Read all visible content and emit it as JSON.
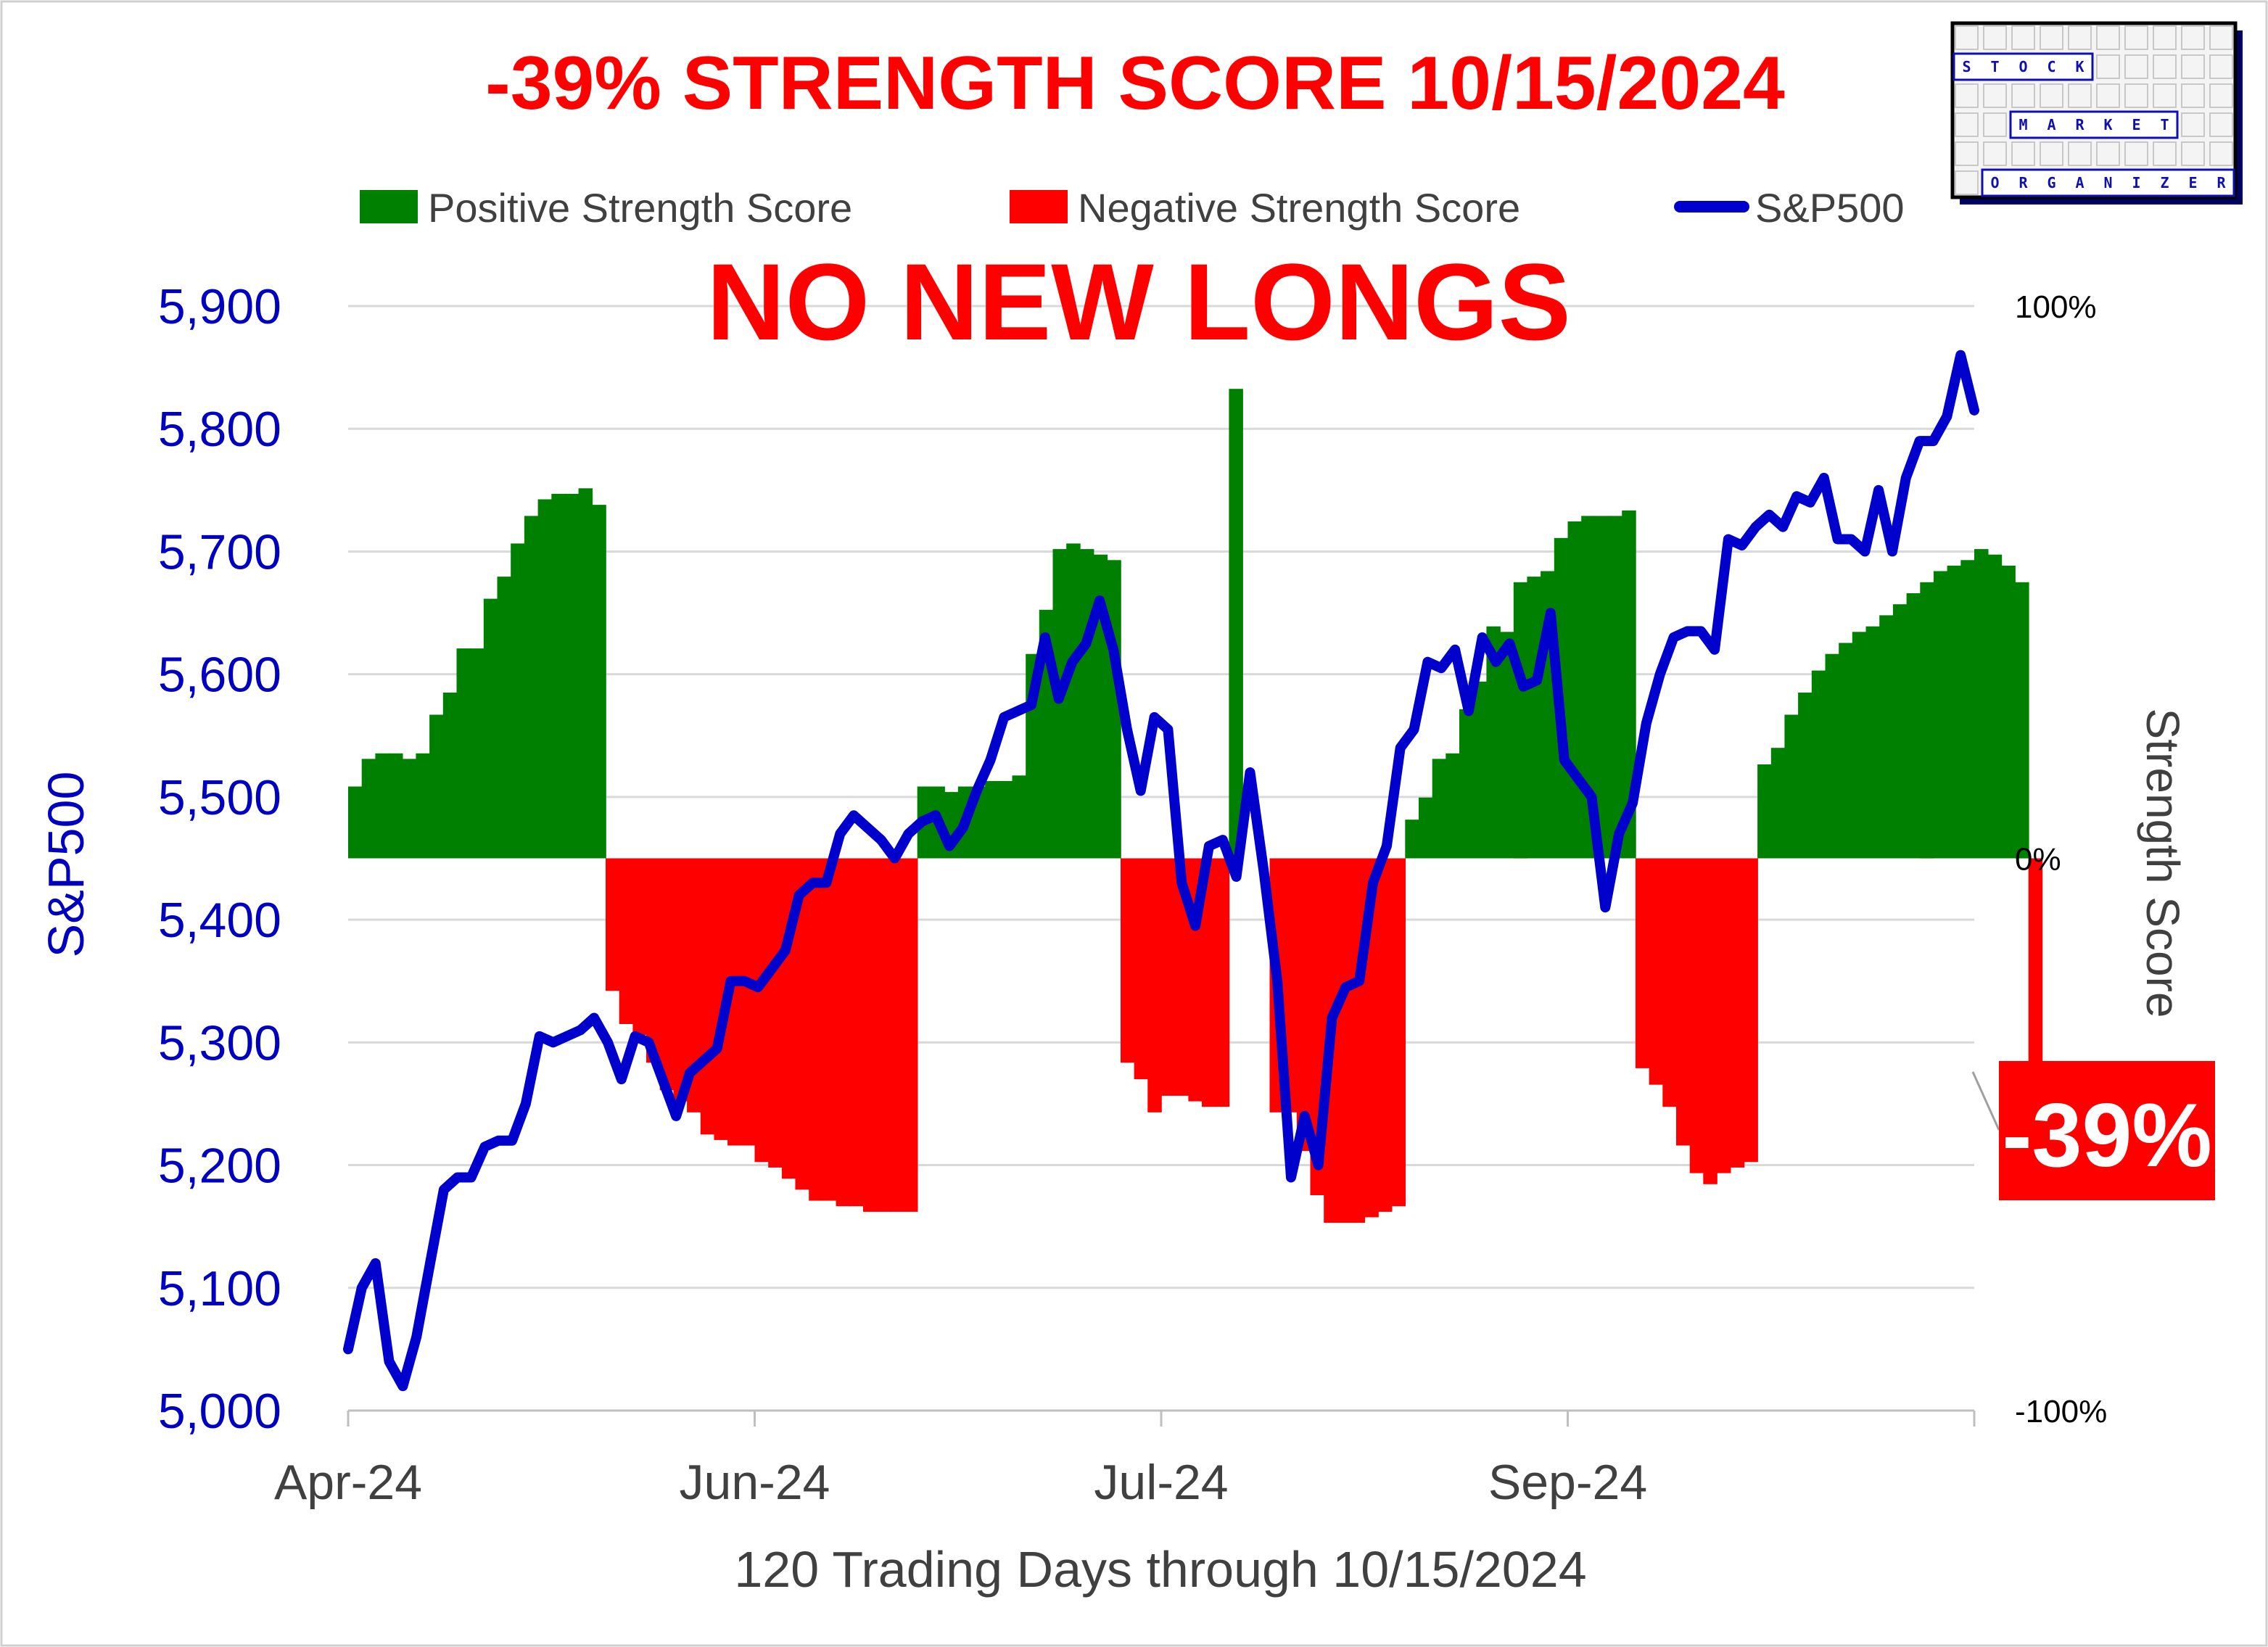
{
  "chart_data": {
    "type": "bar+line",
    "title": "-39% STRENGTH SCORE 10/15/2024",
    "annotation": "NO NEW LONGS",
    "current_label": "-39%",
    "xlabel": "120 Trading Days through 10/15/2024",
    "ylabel_left": "S&P500",
    "ylabel_right": "Strength Score",
    "ylim_left": [
      5000,
      5900
    ],
    "ylim_right": [
      -100,
      100
    ],
    "left_ticks": [
      "5,000",
      "5,100",
      "5,200",
      "5,300",
      "5,400",
      "5,500",
      "5,600",
      "5,700",
      "5,800",
      "5,900"
    ],
    "right_ticks": [
      "-100%",
      "0%",
      "100%"
    ],
    "x_ticks": [
      {
        "label": "Apr-24",
        "day": 0
      },
      {
        "label": "Jun-24",
        "day": 30
      },
      {
        "label": "Jul-24",
        "day": 60
      },
      {
        "label": "Sep-24",
        "day": 90
      },
      {
        "label": "",
        "day": 120
      }
    ],
    "legend": [
      {
        "label": "Positive Strength Score",
        "color": "#008000",
        "kind": "box"
      },
      {
        "label": "Negative Strength Score",
        "color": "#ff0000",
        "kind": "box"
      },
      {
        "label": "S&P500",
        "color": "#0000cc",
        "kind": "line"
      }
    ],
    "grid": true,
    "legend_position": "top",
    "colors": {
      "positive": "#008000",
      "negative": "#ff0000",
      "line": "#0000cc",
      "callout_bg": "#ff0000"
    },
    "series": [
      {
        "name": "Strength Score",
        "unit": "%",
        "values": [
          13,
          18,
          19,
          19,
          18,
          19,
          26,
          30,
          38,
          38,
          47,
          51,
          57,
          62,
          65,
          66,
          66,
          67,
          64,
          -24,
          -30,
          -32,
          -37,
          -42,
          -44,
          -46,
          -50,
          -51,
          -52,
          -52,
          -55,
          -56,
          -58,
          -60,
          -62,
          -62,
          -63,
          -63,
          -64,
          -64,
          -64,
          -64,
          13,
          13,
          12,
          13,
          13,
          14,
          14,
          15,
          37,
          45,
          56,
          57,
          56,
          55,
          54,
          -37,
          -40,
          -46,
          -43,
          -43,
          -44,
          -45,
          -45,
          85,
          0,
          0,
          -46,
          -46,
          -53,
          -61,
          -66,
          -66,
          -66,
          -65,
          -64,
          -63,
          7,
          11,
          18,
          19,
          27,
          32,
          42,
          41,
          50,
          51,
          52,
          58,
          61,
          62,
          62,
          62,
          63,
          -38,
          -41,
          -45,
          -52,
          -57,
          -59,
          -57,
          -56,
          -55,
          1,
          1,
          1,
          1,
          1,
          1,
          1,
          1,
          1,
          1,
          1,
          1,
          1,
          1,
          1,
          1,
          1,
          1,
          1,
          1,
          -38
        ],
        "values_overlay": [
          13,
          18,
          19,
          19,
          18,
          19,
          26,
          30,
          38,
          38,
          47,
          51,
          57,
          62,
          65,
          66,
          66,
          67,
          64,
          -24,
          -30,
          -32,
          -37,
          -42,
          -44,
          -46,
          -50,
          -51,
          -52,
          -52,
          -55,
          -56,
          -58,
          -60,
          -62,
          -62,
          -63,
          -63,
          -64,
          -64,
          -64,
          -64,
          13,
          13,
          12,
          13,
          13,
          14,
          14,
          15,
          37,
          45,
          56,
          57,
          56,
          55,
          54,
          -37,
          -40,
          -46,
          -43,
          -43,
          -44,
          -45,
          -45,
          85,
          0,
          0,
          -46,
          -46,
          -53,
          -61,
          -66,
          -66,
          -66,
          -65,
          -64,
          -63,
          7,
          11,
          18,
          19,
          27,
          32,
          42,
          41,
          50,
          51,
          52,
          58,
          61,
          62,
          62,
          62,
          63,
          -38,
          -41,
          -45,
          -52,
          -57,
          -59,
          -57,
          -56,
          -55,
          17,
          20,
          26,
          30,
          34,
          37,
          39,
          41,
          42,
          44,
          46,
          48,
          50,
          52,
          53,
          54,
          56,
          55,
          53,
          50,
          -39
        ]
      },
      {
        "name": "S&P500",
        "values": [
          5050,
          5100,
          5120,
          5040,
          5020,
          5060,
          5120,
          5180,
          5190,
          5190,
          5215,
          5220,
          5220,
          5250,
          5305,
          5300,
          5305,
          5310,
          5320,
          5300,
          5270,
          5305,
          5300,
          5270,
          5240,
          5275,
          5285,
          5295,
          5350,
          5350,
          5345,
          5360,
          5375,
          5420,
          5430,
          5430,
          5470,
          5485,
          5475,
          5465,
          5450,
          5470,
          5480,
          5485,
          5460,
          5475,
          5505,
          5530,
          5565,
          5570,
          5575,
          5630,
          5580,
          5610,
          5625,
          5660,
          5620,
          5555,
          5505,
          5565,
          5555,
          5430,
          5395,
          5460,
          5465,
          5435,
          5520,
          5440,
          5350,
          5190,
          5240,
          5200,
          5320,
          5345,
          5350,
          5430,
          5460,
          5540,
          5555,
          5610,
          5605,
          5620,
          5570,
          5630,
          5610,
          5625,
          5590,
          5595,
          5650,
          5530,
          5515,
          5500,
          5410,
          5470,
          5495,
          5560,
          5600,
          5630,
          5635,
          5635,
          5620,
          5710,
          5705,
          5720,
          5730,
          5720,
          5745,
          5740,
          5760,
          5710,
          5710,
          5700,
          5750,
          5700,
          5760,
          5790,
          5790,
          5810,
          5860,
          5815
        ]
      }
    ]
  },
  "logo": {
    "rows": [
      {
        "text": "STOCK",
        "offset": 0
      },
      {
        "text": "MARKET",
        "offset": 2
      },
      {
        "text": "ORGANIZER",
        "offset": 1
      }
    ]
  }
}
